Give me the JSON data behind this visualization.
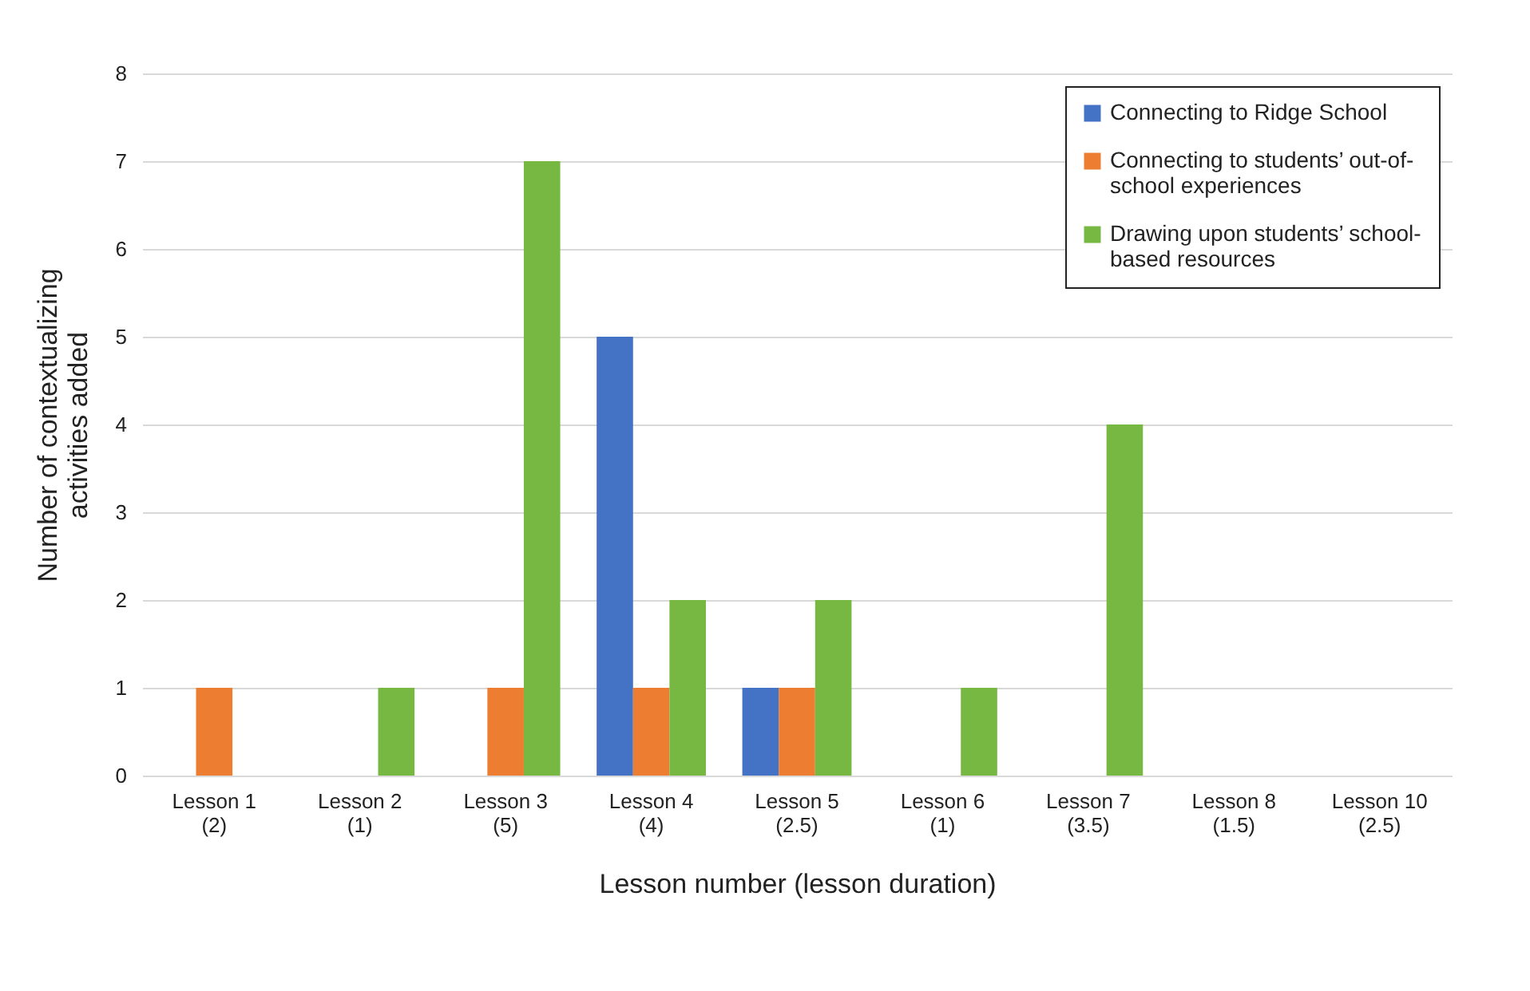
{
  "chart_data": {
    "type": "bar",
    "xlabel": "Lesson number (lesson duration)",
    "ylabel": "Number of contextualizing activities added",
    "categories": [
      "Lesson 1\n(2)",
      "Lesson 2\n(1)",
      "Lesson 3\n(5)",
      "Lesson 4\n(4)",
      "Lesson 5\n(2.5)",
      "Lesson 6\n(1)",
      "Lesson 7\n(3.5)",
      "Lesson 8\n(1.5)",
      "Lesson 10\n(2.5)"
    ],
    "series": [
      {
        "name": "Connecting to Ridge School",
        "color": "#4472c4",
        "values": [
          0,
          0,
          0,
          5,
          1,
          0,
          0,
          0,
          0
        ]
      },
      {
        "name": "Connecting to students’ out-of-school experiences",
        "color": "#ed7d31",
        "values": [
          1,
          0,
          1,
          1,
          1,
          0,
          0,
          0,
          0
        ]
      },
      {
        "name": "Drawing upon students’ school-based resources",
        "color": "#77b843",
        "values": [
          0,
          1,
          7,
          2,
          2,
          1,
          4,
          0,
          0
        ]
      }
    ],
    "ylim": [
      0,
      8
    ],
    "yticks": [
      0,
      1,
      2,
      3,
      4,
      5,
      6,
      7,
      8
    ],
    "grid": "y",
    "legend": "top right"
  }
}
